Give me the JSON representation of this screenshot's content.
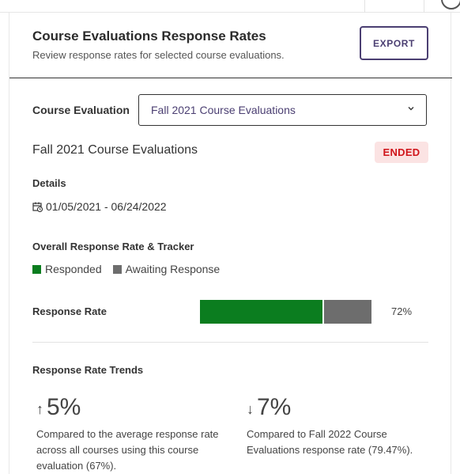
{
  "header": {
    "title": "Course Evaluations Response Rates",
    "subtitle": "Review response rates for selected course evaluations.",
    "export_label": "EXPORT"
  },
  "filter": {
    "label": "Course Evaluation",
    "selected": "Fall 2021 Course Evaluations"
  },
  "evaluation": {
    "name": "Fall 2021 Course Evaluations",
    "status": "ENDED",
    "status_color": "#d0151b",
    "details_label": "Details",
    "date_range": "01/05/2021 - 06/24/2022"
  },
  "tracker": {
    "label": "Overall Response Rate & Tracker",
    "legend": [
      {
        "label": "Responded",
        "color": "#0b7d1f"
      },
      {
        "label": "Awaiting Response",
        "color": "#6d6d6d"
      }
    ],
    "rate_label": "Response Rate",
    "rate_fraction": 0.72,
    "rate_text": "72%"
  },
  "trends": {
    "label": "Response Rate Trends",
    "items": [
      {
        "direction": "up",
        "arrow": "↑",
        "value": "5%",
        "description": "Compared to the average response rate across all courses using this course evaluation (67%)."
      },
      {
        "direction": "down",
        "arrow": "↓",
        "value": "7%",
        "description": "Compared to Fall 2022 Course Evaluations response rate (79.47%)."
      }
    ]
  },
  "icons": {
    "calendar": "calendar-clock-icon",
    "dropdown": "chevron-down-icon"
  }
}
